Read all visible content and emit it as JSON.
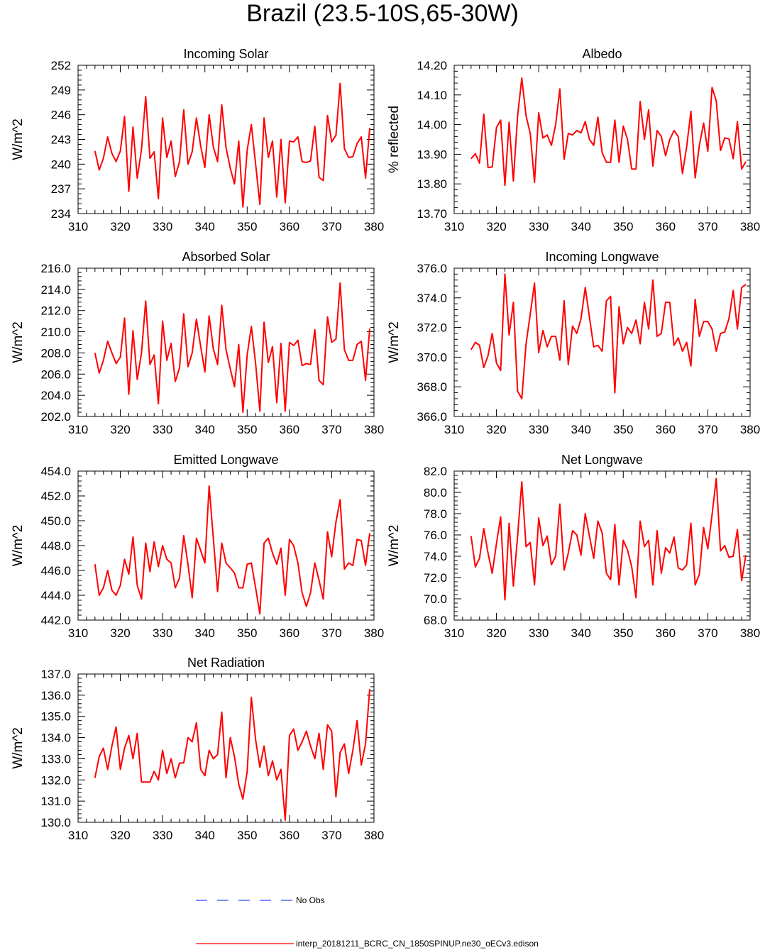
{
  "page_title": "Brazil (23.5-10S,65-30W)",
  "legend": {
    "obs_label": "No Obs",
    "obs_color": "#3344ff",
    "model_label": "interp_20181211_BCRC_CN_1850SPINUP.ne30_oECv3.edison",
    "model_color": "#ff0000"
  },
  "chart_data": [
    {
      "type": "line",
      "title": "Incoming Solar",
      "ylabel": "W/m^2",
      "xlim": [
        310,
        380
      ],
      "ylim": [
        234,
        252
      ],
      "xticks": [
        310,
        320,
        330,
        340,
        350,
        360,
        370,
        380
      ],
      "yticks": [
        "234",
        "237",
        "240",
        "243",
        "246",
        "249",
        "252"
      ],
      "x_start": 314,
      "series": [
        {
          "values": [
            241.6,
            239.3,
            240.7,
            243.3,
            241.3,
            240.3,
            241.6,
            245.8,
            236.7,
            244.5,
            238.3,
            241.8,
            248.2,
            240.7,
            241.5,
            235.8,
            245.6,
            240.8,
            242.8,
            238.5,
            240.3,
            246.6,
            240.0,
            241.5,
            245.6,
            242.2,
            239.6,
            246.0,
            242.1,
            240.3,
            247.2,
            242.0,
            239.5,
            237.6,
            242.8,
            234.8,
            241.7,
            244.8,
            240.0,
            235.1,
            245.6,
            240.8,
            242.8,
            236.0,
            243.0,
            235.3,
            242.8,
            242.7,
            243.3,
            240.3,
            240.2,
            240.4,
            244.6,
            238.4,
            238.0,
            245.9,
            242.7,
            243.5,
            249.8,
            241.9,
            240.8,
            240.9,
            242.5,
            243.3,
            238.3,
            244.4
          ]
        }
      ]
    },
    {
      "type": "line",
      "title": "Albedo",
      "ylabel": "% reflected",
      "xlim": [
        310,
        380
      ],
      "ylim": [
        13.7,
        14.2
      ],
      "xticks": [
        310,
        320,
        330,
        340,
        350,
        360,
        370,
        380
      ],
      "yticks": [
        "13.70",
        "13.80",
        "13.90",
        "14.00",
        "14.10",
        "14.20"
      ],
      "x_start": 314,
      "series": [
        {
          "values": [
            13.885,
            13.902,
            13.87,
            14.035,
            13.855,
            13.857,
            13.99,
            14.015,
            13.795,
            14.008,
            13.81,
            14.03,
            14.157,
            14.03,
            13.97,
            13.805,
            14.04,
            13.955,
            13.965,
            13.93,
            14.0,
            14.12,
            13.883,
            13.97,
            13.965,
            13.98,
            13.972,
            14.01,
            13.95,
            13.93,
            14.025,
            13.905,
            13.873,
            13.873,
            14.015,
            13.873,
            13.995,
            13.95,
            13.85,
            13.85,
            14.078,
            13.95,
            14.05,
            13.86,
            13.98,
            13.96,
            13.895,
            13.95,
            13.98,
            13.96,
            13.835,
            13.925,
            14.045,
            13.82,
            13.93,
            14.005,
            13.91,
            14.125,
            14.08,
            13.913,
            13.955,
            13.952,
            13.885,
            14.01,
            13.85,
            13.875
          ]
        }
      ]
    },
    {
      "type": "line",
      "title": "Absorbed Solar",
      "ylabel": "W/m^2",
      "xlim": [
        310,
        380
      ],
      "ylim": [
        202,
        216
      ],
      "xticks": [
        310,
        320,
        330,
        340,
        350,
        360,
        370,
        380
      ],
      "yticks": [
        "202.0",
        "204.0",
        "206.0",
        "208.0",
        "210.0",
        "212.0",
        "214.0",
        "216.0"
      ],
      "x_start": 314,
      "series": [
        {
          "values": [
            208.0,
            206.1,
            207.3,
            209.1,
            208.0,
            207.0,
            207.6,
            211.3,
            204.1,
            210.1,
            205.5,
            208.0,
            212.9,
            206.9,
            207.8,
            203.2,
            211.0,
            207.3,
            208.9,
            205.3,
            206.6,
            211.7,
            206.7,
            208.0,
            211.2,
            208.6,
            206.2,
            211.5,
            208.4,
            206.9,
            212.5,
            208.3,
            206.5,
            204.8,
            208.8,
            202.4,
            207.8,
            210.5,
            207.0,
            202.5,
            210.9,
            207.1,
            208.6,
            203.3,
            208.9,
            202.5,
            209.0,
            208.7,
            209.2,
            206.8,
            207.0,
            206.9,
            210.2,
            205.4,
            205.0,
            211.4,
            209.0,
            209.3,
            214.6,
            208.3,
            207.3,
            207.3,
            208.8,
            209.1,
            205.4,
            210.3
          ]
        }
      ]
    },
    {
      "type": "line",
      "title": "Incoming Longwave",
      "ylabel": "W/m^2",
      "xlim": [
        310,
        380
      ],
      "ylim": [
        366,
        376
      ],
      "xticks": [
        310,
        320,
        330,
        340,
        350,
        360,
        370,
        380
      ],
      "yticks": [
        "366.0",
        "368.0",
        "370.0",
        "372.0",
        "374.0",
        "376.0"
      ],
      "x_start": 314,
      "series": [
        {
          "values": [
            370.5,
            371.0,
            370.8,
            369.3,
            370.1,
            371.6,
            369.6,
            369.1,
            375.6,
            371.5,
            373.7,
            367.7,
            367.2,
            370.9,
            372.9,
            375.0,
            370.3,
            371.8,
            370.7,
            371.4,
            371.4,
            369.8,
            373.8,
            369.5,
            372.1,
            371.6,
            372.6,
            374.7,
            372.7,
            370.7,
            370.8,
            370.4,
            373.8,
            374.1,
            367.6,
            373.4,
            370.9,
            372.0,
            371.6,
            372.5,
            370.9,
            373.7,
            371.9,
            375.2,
            371.4,
            371.6,
            373.7,
            373.7,
            370.8,
            371.3,
            370.4,
            371.0,
            369.4,
            373.9,
            371.4,
            372.4,
            372.4,
            371.9,
            370.4,
            371.6,
            371.7,
            372.6,
            374.5,
            371.9,
            374.7,
            374.9
          ]
        }
      ]
    },
    {
      "type": "line",
      "title": "Emitted Longwave",
      "ylabel": "W/m^2",
      "xlim": [
        310,
        380
      ],
      "ylim": [
        442,
        454
      ],
      "xticks": [
        310,
        320,
        330,
        340,
        350,
        360,
        370,
        380
      ],
      "yticks": [
        "442.0",
        "444.0",
        "446.0",
        "448.0",
        "450.0",
        "452.0",
        "454.0"
      ],
      "x_start": 314,
      "series": [
        {
          "values": [
            446.5,
            444.0,
            444.6,
            446.0,
            444.4,
            444.0,
            444.8,
            446.9,
            445.7,
            448.7,
            444.8,
            443.7,
            448.2,
            445.9,
            448.3,
            446.3,
            448.0,
            446.9,
            446.6,
            444.6,
            445.4,
            448.8,
            446.5,
            443.8,
            448.6,
            447.6,
            446.6,
            452.8,
            448.6,
            444.3,
            448.2,
            446.6,
            446.2,
            445.8,
            444.6,
            444.6,
            446.5,
            446.6,
            444.6,
            442.5,
            448.2,
            448.6,
            447.4,
            446.5,
            447.8,
            444.0,
            448.5,
            448.0,
            446.6,
            444.2,
            443.1,
            444.2,
            446.6,
            445.2,
            443.7,
            449.1,
            447.1,
            449.9,
            451.7,
            446.1,
            446.6,
            446.4,
            448.5,
            448.4,
            446.4,
            449.0
          ]
        }
      ]
    },
    {
      "type": "line",
      "title": "Net Longwave",
      "ylabel": "W/m^2",
      "xlim": [
        310,
        380
      ],
      "ylim": [
        68,
        82
      ],
      "xticks": [
        310,
        320,
        330,
        340,
        350,
        360,
        370,
        380
      ],
      "yticks": [
        "68.0",
        "70.0",
        "72.0",
        "74.0",
        "76.0",
        "78.0",
        "80.0",
        "82.0"
      ],
      "x_start": 314,
      "series": [
        {
          "values": [
            75.9,
            73.0,
            73.8,
            76.6,
            74.3,
            72.4,
            75.2,
            77.7,
            69.9,
            77.1,
            71.2,
            75.9,
            81.0,
            74.9,
            75.3,
            71.3,
            77.6,
            75.0,
            75.9,
            73.2,
            74.0,
            78.9,
            72.7,
            74.3,
            76.4,
            76.0,
            74.1,
            78.0,
            75.9,
            73.8,
            77.3,
            76.2,
            72.4,
            71.8,
            77.0,
            71.3,
            75.5,
            74.6,
            73.0,
            70.1,
            77.3,
            74.9,
            75.5,
            71.3,
            76.4,
            72.4,
            74.8,
            74.3,
            75.8,
            72.9,
            72.7,
            73.2,
            77.1,
            71.3,
            72.3,
            76.7,
            74.7,
            77.9,
            81.3,
            74.5,
            75.0,
            73.9,
            74.0,
            76.5,
            71.7,
            74.1
          ]
        }
      ]
    },
    {
      "type": "line",
      "title": "Net Radiation",
      "ylabel": "W/m^2",
      "xlim": [
        310,
        380
      ],
      "ylim": [
        130,
        137
      ],
      "xticks": [
        310,
        320,
        330,
        340,
        350,
        360,
        370,
        380
      ],
      "yticks": [
        "130.0",
        "131.0",
        "132.0",
        "133.0",
        "134.0",
        "135.0",
        "136.0",
        "137.0"
      ],
      "x_start": 314,
      "series": [
        {
          "values": [
            132.1,
            133.1,
            133.5,
            132.5,
            133.6,
            134.5,
            132.5,
            133.5,
            134.1,
            133.0,
            134.2,
            131.9,
            131.9,
            131.9,
            132.4,
            132.0,
            133.4,
            132.3,
            133.0,
            132.1,
            132.8,
            132.8,
            134.0,
            133.8,
            134.7,
            132.5,
            132.2,
            133.4,
            133.0,
            133.2,
            135.2,
            132.1,
            134.0,
            133.1,
            131.8,
            131.1,
            132.4,
            135.9,
            133.9,
            132.6,
            133.6,
            132.2,
            132.9,
            132.0,
            132.5,
            130.1,
            134.1,
            134.4,
            133.4,
            133.8,
            134.3,
            133.6,
            133.0,
            134.2,
            132.5,
            134.6,
            134.3,
            131.2,
            133.3,
            133.7,
            132.3,
            133.4,
            134.8,
            132.7,
            133.7,
            136.3
          ]
        }
      ]
    }
  ]
}
